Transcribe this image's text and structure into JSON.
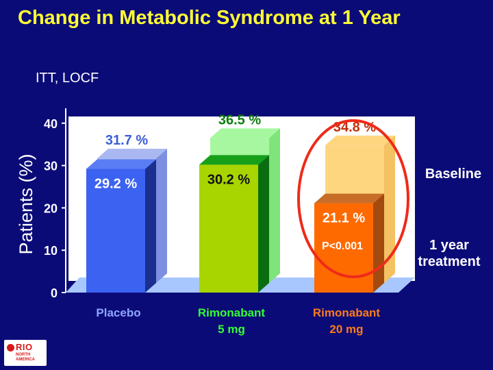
{
  "slide": {
    "title": "Change in Metabolic Syndrome at 1 Year",
    "logo": {
      "name": "RIO",
      "line1": "NORTH",
      "line2": "AMERICA"
    }
  },
  "chart_data": {
    "type": "bar",
    "subtitle": "ITT, LOCF",
    "ylabel": "Patients (%)",
    "ylim": [
      0,
      40
    ],
    "yticks": [
      0,
      10,
      20,
      30,
      40
    ],
    "categories": [
      "Placebo",
      "Rimonabant 5 mg",
      "Rimonabant 20 mg"
    ],
    "category_lines": [
      [
        "Placebo"
      ],
      [
        "Rimonabant",
        "5 mg"
      ],
      [
        "Rimonabant",
        "20 mg"
      ]
    ],
    "series": [
      {
        "name": "Baseline",
        "values": [
          31.7,
          36.5,
          34.8
        ],
        "labels": [
          "31.7 %",
          "36.5 %",
          "34.8 %"
        ]
      },
      {
        "name": "1 year treatment",
        "values": [
          29.2,
          30.2,
          21.1
        ],
        "labels": [
          "29.2 %",
          "30.2 %",
          "21.1 %"
        ]
      }
    ],
    "legend_lines": {
      "baseline": [
        "Baseline"
      ],
      "treatment": [
        "1 year",
        "treatment"
      ]
    },
    "annotation": {
      "text": "P<0.001",
      "category": "Rimonabant 20 mg"
    },
    "colors": {
      "baseline_front": [
        "#a9b8f0",
        "#a6f7a0",
        "#ffd680"
      ],
      "baseline_side": [
        "#7c8fe0",
        "#7fe47a",
        "#f4c163"
      ],
      "baseline_label": [
        "#3a5ed8",
        "#0b7d0b",
        "#c0300a"
      ],
      "treatment_front": [
        "#3b62f0",
        "#a8d400",
        "#ff6a00"
      ],
      "treatment_side": [
        "#1b2f8f",
        "#0a6e10",
        "#a34a0e"
      ],
      "treatment_top": [
        "#5a7cf5",
        "#16a01a",
        "#c76d28"
      ],
      "category_label": [
        "#8fa6ff",
        "#33ff33",
        "#ff7a1a"
      ],
      "floor": "#a8c7ff",
      "plot_bg": "#ffffff",
      "highlight_ellipse": "#ee2b1a"
    }
  }
}
